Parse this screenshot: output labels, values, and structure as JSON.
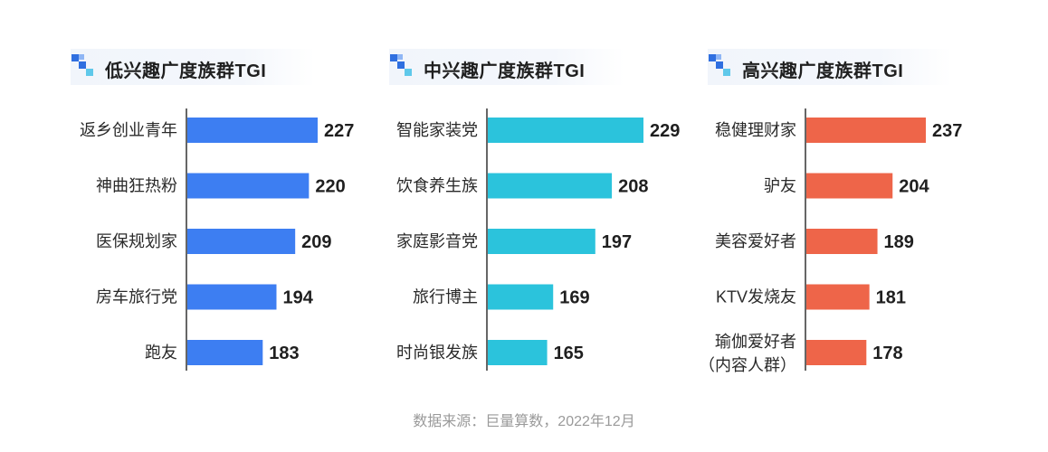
{
  "chart_data": [
    {
      "type": "bar",
      "title": "低兴趣广度族群TGI",
      "categories": [
        "返乡创业青年",
        "神曲狂热粉",
        "医保规划家",
        "房车旅行党",
        "跑友"
      ],
      "values": [
        227,
        220,
        209,
        194,
        183
      ],
      "color": "#3d7ef2",
      "xlim": [
        0,
        240
      ]
    },
    {
      "type": "bar",
      "title": "中兴趣广度族群TGI",
      "categories": [
        "智能家装党",
        "饮食养生族",
        "家庭影音党",
        "旅行博主",
        "时尚银发族"
      ],
      "values": [
        229,
        208,
        197,
        169,
        165
      ],
      "color": "#2bc3dc",
      "xlim": [
        0,
        240
      ]
    },
    {
      "type": "bar",
      "title": "高兴趣广度族群TGI",
      "categories": [
        "稳健理财家",
        "驴友",
        "美容爱好者",
        "KTV发烧友",
        [
          "瑜伽爱好者",
          "（内容人群）"
        ]
      ],
      "values": [
        237,
        204,
        189,
        181,
        178
      ],
      "color": "#ee6549",
      "xlim": [
        0,
        240
      ]
    }
  ],
  "footer": {
    "source": "数据来源：巨量算数，2022年12月"
  },
  "icon": {
    "name": "stair-blocks-icon",
    "dark": "#2f6fe0",
    "light": "#5fc8ea"
  }
}
